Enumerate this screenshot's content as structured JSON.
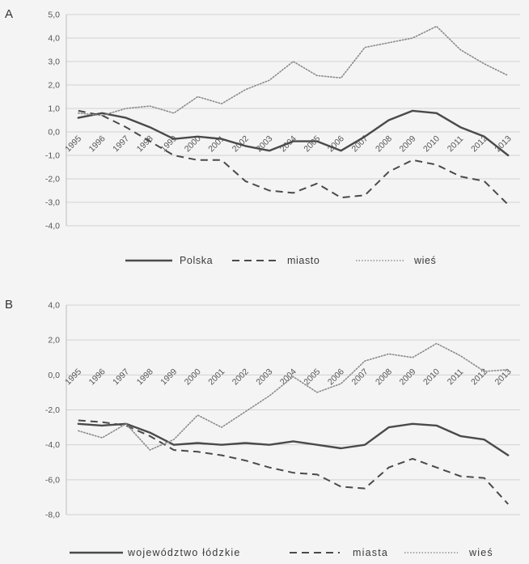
{
  "chart_data": [
    {
      "panel_label": "A",
      "type": "line",
      "categories": [
        "1995",
        "1996",
        "1997",
        "1998",
        "1999",
        "2000",
        "2001",
        "2002",
        "2003",
        "2004",
        "2005",
        "2006",
        "2007",
        "2008",
        "2009",
        "2010",
        "2011",
        "2012",
        "2013"
      ],
      "y_ticks": [
        "5,0",
        "4,0",
        "3,0",
        "2,0",
        "1,0",
        "0,0",
        "-1,0",
        "-2,0",
        "-3,0",
        "-4,0"
      ],
      "ylim": [
        -4,
        5
      ],
      "grid": true,
      "legend_position": "bottom",
      "series": [
        {
          "name": "Polska",
          "style": "solid",
          "color": "#4a4a4a",
          "values": [
            0.6,
            0.8,
            0.6,
            0.2,
            -0.3,
            -0.2,
            -0.3,
            -0.6,
            -0.8,
            -0.4,
            -0.4,
            -0.8,
            -0.2,
            0.5,
            0.9,
            0.8,
            0.2,
            -0.2,
            -1.0
          ]
        },
        {
          "name": "miasto",
          "style": "dashed",
          "color": "#4a4a4a",
          "values": [
            0.9,
            0.7,
            0.2,
            -0.4,
            -1.0,
            -1.2,
            -1.2,
            -2.1,
            -2.5,
            -2.6,
            -2.2,
            -2.8,
            -2.7,
            -1.7,
            -1.2,
            -1.4,
            -1.9,
            -2.1,
            -3.1
          ]
        },
        {
          "name": "wieś",
          "style": "dotted",
          "color": "#8a8a8a",
          "values": [
            0.8,
            0.7,
            1.0,
            1.1,
            0.8,
            1.5,
            1.2,
            1.8,
            2.2,
            3.0,
            2.4,
            2.3,
            3.6,
            3.8,
            4.0,
            4.5,
            3.5,
            2.9,
            2.4
          ]
        }
      ]
    },
    {
      "panel_label": "B",
      "type": "line",
      "categories": [
        "1995",
        "1996",
        "1997",
        "1998",
        "1999",
        "2000",
        "2001",
        "2002",
        "2003",
        "2004",
        "2005",
        "2006",
        "2007",
        "2008",
        "2009",
        "2010",
        "2011",
        "2012",
        "2013"
      ],
      "y_ticks": [
        "4,0",
        "2,0",
        "0,0",
        "-2,0",
        "-4,0",
        "-6,0",
        "-8,0"
      ],
      "ylim": [
        -8,
        4
      ],
      "grid": true,
      "legend_position": "bottom",
      "series": [
        {
          "name": "województwo łódzkie",
          "style": "solid",
          "color": "#4a4a4a",
          "values": [
            -2.8,
            -2.9,
            -2.8,
            -3.3,
            -4.0,
            -3.9,
            -4.0,
            -3.9,
            -4.0,
            -3.8,
            -4.0,
            -4.2,
            -4.0,
            -3.0,
            -2.8,
            -2.9,
            -3.5,
            -3.7,
            -4.6
          ]
        },
        {
          "name": "miasta",
          "style": "dashed",
          "color": "#4a4a4a",
          "values": [
            -2.6,
            -2.7,
            -2.9,
            -3.5,
            -4.3,
            -4.4,
            -4.6,
            -4.9,
            -5.3,
            -5.6,
            -5.7,
            -6.4,
            -6.5,
            -5.3,
            -4.8,
            -5.3,
            -5.8,
            -5.9,
            -7.4
          ]
        },
        {
          "name": "wieś",
          "style": "dotted",
          "color": "#8a8a8a",
          "values": [
            -3.2,
            -3.6,
            -2.8,
            -4.3,
            -3.7,
            -2.3,
            -3.0,
            -2.1,
            -1.2,
            -0.1,
            -1.0,
            -0.5,
            0.8,
            1.2,
            1.0,
            1.8,
            1.1,
            0.2,
            0.3
          ]
        }
      ]
    }
  ]
}
